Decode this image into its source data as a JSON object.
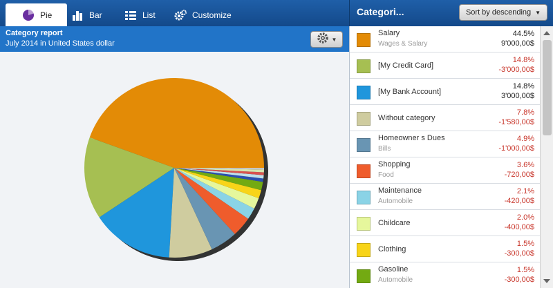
{
  "tabs": [
    {
      "label": "Pie",
      "icon": "pie-chart-icon",
      "active": true
    },
    {
      "label": "Bar",
      "icon": "bar-chart-icon",
      "active": false
    },
    {
      "label": "List",
      "icon": "list-icon",
      "active": false
    },
    {
      "label": "Customize",
      "icon": "gears-icon",
      "active": false
    }
  ],
  "report": {
    "title": "Category report",
    "subtitle": "July 2014 in United States dollar"
  },
  "panel": {
    "title": "Categori...",
    "sort_label": "Sort by descending"
  },
  "categories": [
    {
      "name": "Salary",
      "sub": "Wages & Salary",
      "pct": "44.5%",
      "amount": "9'000,00$",
      "sign": "pos",
      "color": "#e38b06"
    },
    {
      "name": "[My Credit Card]",
      "sub": "",
      "pct": "14.8%",
      "amount": "-3'000,00$",
      "sign": "neg",
      "color": "#a6bf52"
    },
    {
      "name": "[My Bank Account]",
      "sub": "",
      "pct": "14.8%",
      "amount": "3'000,00$",
      "sign": "pos",
      "color": "#1f96dc"
    },
    {
      "name": "Without category",
      "sub": "",
      "pct": "7.8%",
      "amount": "-1'580,00$",
      "sign": "neg",
      "color": "#cfcc9f"
    },
    {
      "name": "Homeowner s Dues",
      "sub": "Bills",
      "pct": "4.9%",
      "amount": "-1'000,00$",
      "sign": "neg",
      "color": "#6995b3"
    },
    {
      "name": "Shopping",
      "sub": "Food",
      "pct": "3.6%",
      "amount": "-720,00$",
      "sign": "neg",
      "color": "#ef5c2c"
    },
    {
      "name": "Maintenance",
      "sub": "Automobile",
      "pct": "2.1%",
      "amount": "-420,00$",
      "sign": "neg",
      "color": "#8ad3e6"
    },
    {
      "name": "Childcare",
      "sub": "",
      "pct": "2.0%",
      "amount": "-400,00$",
      "sign": "neg",
      "color": "#e6f79c"
    },
    {
      "name": "Clothing",
      "sub": "",
      "pct": "1.5%",
      "amount": "-300,00$",
      "sign": "neg",
      "color": "#f8d418"
    },
    {
      "name": "Gasoline",
      "sub": "Automobile",
      "pct": "1.5%",
      "amount": "-300,00$",
      "sign": "neg",
      "color": "#73aa12"
    }
  ],
  "chart_data": {
    "type": "pie",
    "slices": [
      {
        "label": "Salary",
        "value": 44.5,
        "color": "#e38b06"
      },
      {
        "label": "[My Credit Card]",
        "value": 14.8,
        "color": "#a6bf52"
      },
      {
        "label": "[My Bank Account]",
        "value": 14.8,
        "color": "#1f96dc"
      },
      {
        "label": "Without category",
        "value": 7.8,
        "color": "#cfcc9f"
      },
      {
        "label": "Homeowner s Dues",
        "value": 4.9,
        "color": "#6995b3"
      },
      {
        "label": "Shopping",
        "value": 3.6,
        "color": "#ef5c2c"
      },
      {
        "label": "Maintenance",
        "value": 2.1,
        "color": "#8ad3e6"
      },
      {
        "label": "Childcare",
        "value": 2.0,
        "color": "#e6f79c"
      },
      {
        "label": "Clothing",
        "value": 1.5,
        "color": "#f8d418"
      },
      {
        "label": "Gasoline",
        "value": 1.5,
        "color": "#73aa12"
      },
      {
        "label": "",
        "value": 0.6,
        "color": "#2a4fb0"
      },
      {
        "label": "",
        "value": 0.6,
        "color": "#bfe0ea"
      },
      {
        "label": "",
        "value": 0.5,
        "color": "#d9534f"
      },
      {
        "label": "",
        "value": 0.5,
        "color": "#d7e6b0"
      },
      {
        "label": "",
        "value": 0.3,
        "color": "#c6c6c6"
      }
    ]
  }
}
